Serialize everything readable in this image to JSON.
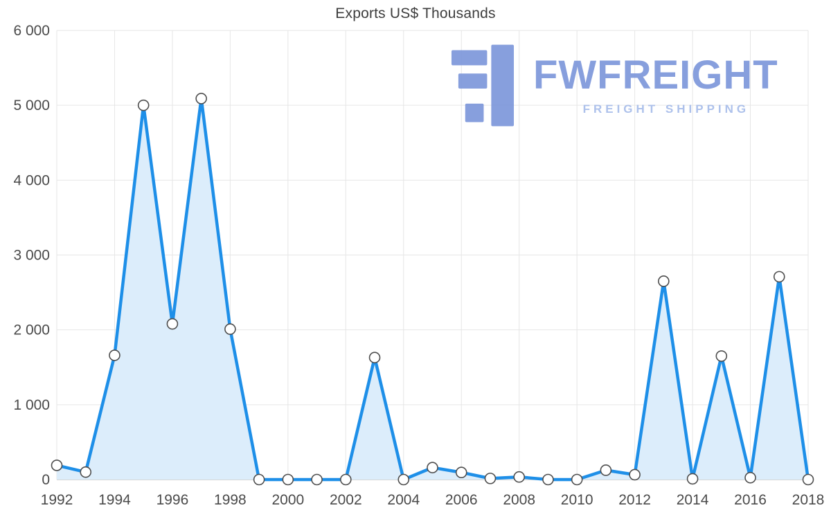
{
  "title": "Exports US$ Thousands",
  "logo": {
    "name": "FWFREIGHT",
    "tagline": "FREIGHT SHIPPING"
  },
  "colors": {
    "line": "#1e8fe8",
    "fill": "#dcedfb",
    "marker_fill": "#ffffff",
    "marker_stroke": "#4d4d4d",
    "grid": "#e6e6e6",
    "axis": "#c8c8c8",
    "tick_text": "#4a4a4a",
    "logo_blue": "#7b95da",
    "logo_tagline": "#a5bbe9"
  },
  "chart_data": {
    "type": "area",
    "title": "Exports US$ Thousands",
    "x": [
      1992,
      1993,
      1994,
      1995,
      1996,
      1997,
      1998,
      1999,
      2000,
      2001,
      2002,
      2003,
      2004,
      2005,
      2006,
      2007,
      2008,
      2009,
      2010,
      2011,
      2012,
      2013,
      2014,
      2015,
      2016,
      2017,
      2018
    ],
    "values": [
      190,
      100,
      1660,
      5000,
      2080,
      5090,
      2010,
      0,
      0,
      0,
      0,
      1630,
      0,
      160,
      95,
      15,
      35,
      0,
      0,
      125,
      65,
      2650,
      10,
      1650,
      25,
      2710,
      0
    ],
    "series_name": "Exports US$ Thousands",
    "xlabel": "",
    "ylabel": "",
    "ylim": [
      0,
      6000
    ],
    "xlim": [
      1992,
      2018
    ],
    "x_tick_step": 2,
    "y_ticks": [
      {
        "value": 0,
        "label": "0"
      },
      {
        "value": 1000,
        "label": "1 000"
      },
      {
        "value": 2000,
        "label": "2 000"
      },
      {
        "value": 3000,
        "label": "3 000"
      },
      {
        "value": 4000,
        "label": "4 000"
      },
      {
        "value": 5000,
        "label": "5 000"
      },
      {
        "value": 6000,
        "label": "6 000"
      }
    ],
    "grid": true,
    "legend": false
  }
}
